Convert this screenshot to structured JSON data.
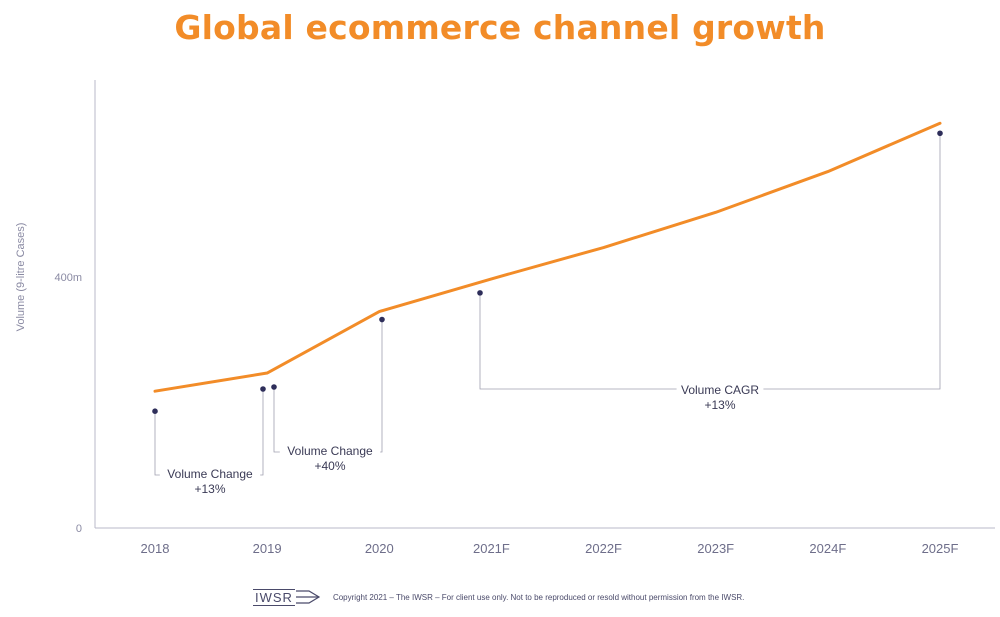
{
  "title": "Global ecommerce channel growth",
  "chart_data": {
    "type": "line",
    "title": "Global ecommerce channel growth",
    "xlabel": "",
    "ylabel": "Volume (9-litre Cases)",
    "categories": [
      "2018",
      "2019",
      "2020",
      "2021F",
      "2022F",
      "2023F",
      "2024F",
      "2025F"
    ],
    "series": [
      {
        "name": "Volume",
        "values": [
          218,
          247,
          345,
          397,
          447,
          503,
          568,
          645
        ]
      }
    ],
    "ylim": [
      0,
      700
    ],
    "yticks": [
      {
        "value": 0,
        "label": "0"
      },
      {
        "value": 400,
        "label": "400m"
      }
    ],
    "grid": false,
    "legend": "none",
    "annotations": [
      {
        "label": "Volume Change",
        "value": "+13%",
        "from": "2018",
        "to": "2019"
      },
      {
        "label": "Volume Change",
        "value": "+40%",
        "from": "2019",
        "to": "2020"
      },
      {
        "label": "Volume CAGR",
        "value": "+13%",
        "from": "2021F",
        "to": "2025F"
      }
    ],
    "colors": {
      "line": "#f28c28",
      "marker": "#2e2e5a",
      "axis": "#b8b8c8",
      "bracket": "#a0a0b0"
    }
  },
  "footer": {
    "logo_text": "IWSR",
    "copyright": "Copyright 2021 – The IWSR – For client use only. Not to be reproduced or resold without permission from the IWSR."
  }
}
